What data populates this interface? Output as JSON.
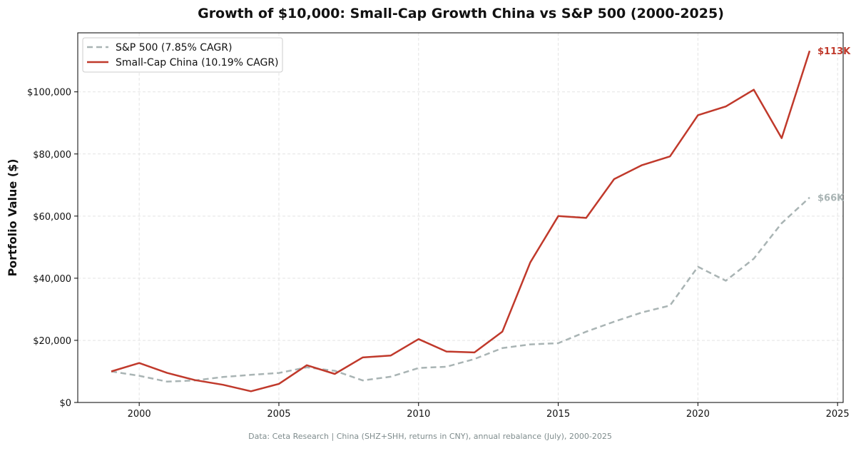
{
  "chart_data": {
    "type": "line",
    "title": "Growth of $10,000: Small-Cap Growth China vs S&P 500 (2000-2025)",
    "xlabel": "",
    "ylabel": "Portfolio Value ($)",
    "footnote": "Data: Ceta Research | China (SHZ+SHH, returns in CNY), annual rebalance (July), 2000-2025",
    "xlim": [
      1997.8,
      2025.2
    ],
    "ylim": [
      0,
      119000
    ],
    "x_ticks": [
      2000,
      2005,
      2010,
      2015,
      2020,
      2025
    ],
    "x_tick_labels": [
      "2000",
      "2005",
      "2010",
      "2015",
      "2020",
      "2025"
    ],
    "y_ticks": [
      0,
      20000,
      40000,
      60000,
      80000,
      100000
    ],
    "y_tick_labels": [
      "$0",
      "$20,000",
      "$40,000",
      "$60,000",
      "$80,000",
      "$100,000"
    ],
    "grid": true,
    "legend_position": "top-left",
    "x": [
      1999,
      2000,
      2001,
      2002,
      2003,
      2004,
      2005,
      2006,
      2007,
      2008,
      2009,
      2010,
      2011,
      2012,
      2013,
      2014,
      2015,
      2016,
      2017,
      2018,
      2019,
      2020,
      2021,
      2022,
      2023,
      2024
    ],
    "series": [
      {
        "name": "S&P 500 (7.85% CAGR)",
        "color": "#a9b4b4",
        "style": "dashed",
        "end_label": "$66K",
        "values": [
          10000,
          8600,
          6700,
          7100,
          8200,
          8900,
          9500,
          11300,
          10200,
          7100,
          8300,
          11100,
          11500,
          14000,
          17500,
          18700,
          19100,
          22800,
          26000,
          29000,
          31200,
          43700,
          39200,
          46300,
          57700,
          66000
        ]
      },
      {
        "name": "Small-Cap China (10.19% CAGR)",
        "color": "#c0392b",
        "style": "solid",
        "end_label": "$113K",
        "values": [
          10000,
          12700,
          9500,
          7200,
          5700,
          3600,
          6000,
          12000,
          9200,
          14500,
          15100,
          20400,
          16400,
          16100,
          22800,
          45100,
          60000,
          59400,
          71900,
          76400,
          79200,
          92500,
          95300,
          100700,
          85100,
          113200
        ]
      }
    ]
  }
}
